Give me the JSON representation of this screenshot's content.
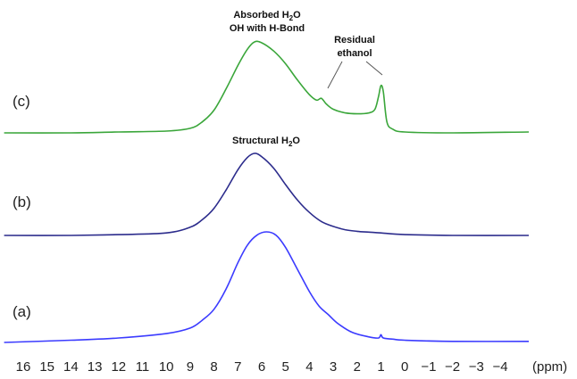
{
  "chart_data": {
    "type": "line",
    "xlabel": "(ppm)",
    "xlim": [
      17,
      -5.5
    ],
    "x_ticks": [
      "16",
      "15",
      "14",
      "13",
      "12",
      "11",
      "10",
      "9",
      "8",
      "7",
      "6",
      "5",
      "4",
      "3",
      "2",
      "1",
      "0",
      "−1",
      "−2",
      "−3",
      "−4"
    ],
    "x_tick_values": [
      16,
      15,
      14,
      13,
      12,
      11,
      10,
      9,
      8,
      7,
      6,
      5,
      4,
      3,
      2,
      1,
      0,
      -1,
      -2,
      -3,
      -4
    ],
    "series": [
      {
        "name": "(c)",
        "color": "#3aa63a",
        "points": [
          [
            16.8,
            0
          ],
          [
            14,
            0
          ],
          [
            12,
            0.01
          ],
          [
            10,
            0.02
          ],
          [
            9,
            0.05
          ],
          [
            8.5,
            0.12
          ],
          [
            8,
            0.25
          ],
          [
            7.5,
            0.48
          ],
          [
            7,
            0.74
          ],
          [
            6.6,
            0.92
          ],
          [
            6.3,
            1.0
          ],
          [
            6,
            0.99
          ],
          [
            5.5,
            0.9
          ],
          [
            5,
            0.76
          ],
          [
            4.5,
            0.58
          ],
          [
            4,
            0.42
          ],
          [
            3.7,
            0.36
          ],
          [
            3.5,
            0.38
          ],
          [
            3.3,
            0.32
          ],
          [
            3,
            0.26
          ],
          [
            2.5,
            0.22
          ],
          [
            2,
            0.21
          ],
          [
            1.5,
            0.22
          ],
          [
            1.25,
            0.26
          ],
          [
            1.1,
            0.4
          ],
          [
            1.0,
            0.52
          ],
          [
            0.9,
            0.45
          ],
          [
            0.75,
            0.12
          ],
          [
            0.5,
            0.04
          ],
          [
            0,
            0.01
          ],
          [
            -2,
            0
          ],
          [
            -5.2,
            0.01
          ]
        ]
      },
      {
        "name": "(b)",
        "color": "#2c2c8c",
        "points": [
          [
            16.8,
            0
          ],
          [
            14,
            0
          ],
          [
            12,
            0.01
          ],
          [
            10,
            0.03
          ],
          [
            9,
            0.1
          ],
          [
            8.5,
            0.19
          ],
          [
            8,
            0.33
          ],
          [
            7.5,
            0.55
          ],
          [
            7,
            0.8
          ],
          [
            6.6,
            0.95
          ],
          [
            6.3,
            1.0
          ],
          [
            6,
            0.96
          ],
          [
            5.5,
            0.82
          ],
          [
            5,
            0.62
          ],
          [
            4.5,
            0.43
          ],
          [
            4,
            0.28
          ],
          [
            3.5,
            0.17
          ],
          [
            3,
            0.11
          ],
          [
            2.5,
            0.07
          ],
          [
            2,
            0.05
          ],
          [
            1.5,
            0.04
          ],
          [
            1,
            0.03
          ],
          [
            0,
            0.01
          ],
          [
            -2,
            0
          ],
          [
            -5.2,
            0
          ]
        ]
      },
      {
        "name": "(a)",
        "color": "#3b3bff",
        "points": [
          [
            16.8,
            0
          ],
          [
            14,
            0.02
          ],
          [
            12,
            0.04
          ],
          [
            10,
            0.08
          ],
          [
            9,
            0.13
          ],
          [
            8.5,
            0.2
          ],
          [
            8,
            0.3
          ],
          [
            7.5,
            0.48
          ],
          [
            7,
            0.72
          ],
          [
            6.6,
            0.88
          ],
          [
            6.2,
            0.97
          ],
          [
            5.8,
            1.0
          ],
          [
            5.4,
            0.97
          ],
          [
            5,
            0.86
          ],
          [
            4.5,
            0.66
          ],
          [
            4,
            0.46
          ],
          [
            3.6,
            0.33
          ],
          [
            3.2,
            0.25
          ],
          [
            2.8,
            0.17
          ],
          [
            2.2,
            0.09
          ],
          [
            1.5,
            0.05
          ],
          [
            1.1,
            0.04
          ],
          [
            1.0,
            0.07
          ],
          [
            0.9,
            0.04
          ],
          [
            0.5,
            0.03
          ],
          [
            0,
            0.02
          ],
          [
            -2,
            0.01
          ],
          [
            -5.2,
            0.01
          ]
        ]
      }
    ],
    "annotations": [
      {
        "line1_pre": "Absorbed H",
        "line1_sub": "2",
        "line1_post": "O",
        "line2": "OH with H-Bond"
      },
      {
        "line1": "Residual",
        "line2": "ethanol"
      },
      {
        "pre": "Structural H",
        "sub": "2",
        "post": "O"
      }
    ]
  }
}
